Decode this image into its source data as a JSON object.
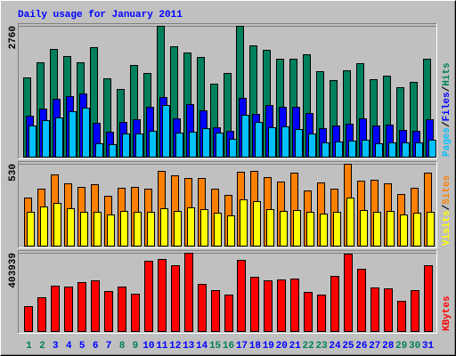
{
  "chart_data": {
    "type": "bar",
    "title": "Daily usage for January 2011",
    "categories": [
      "1",
      "2",
      "3",
      "4",
      "5",
      "6",
      "7",
      "8",
      "9",
      "10",
      "11",
      "12",
      "13",
      "14",
      "15",
      "16",
      "17",
      "18",
      "19",
      "20",
      "21",
      "22",
      "23",
      "24",
      "25",
      "26",
      "27",
      "28",
      "29",
      "30",
      "31"
    ],
    "category_label_colors": [
      "#00805c",
      "#00805c",
      "#0000ff",
      "#0000ff",
      "#0000ff",
      "#0000ff",
      "#0000ff",
      "#00805c",
      "#00805c",
      "#0000ff",
      "#0000ff",
      "#0000ff",
      "#0000ff",
      "#0000ff",
      "#00805c",
      "#00805c",
      "#0000ff",
      "#0000ff",
      "#0000ff",
      "#0000ff",
      "#0000ff",
      "#00805c",
      "#00805c",
      "#0000ff",
      "#0000ff",
      "#0000ff",
      "#0000ff",
      "#0000ff",
      "#00805c",
      "#00805c",
      "#0000ff"
    ],
    "legend_separator": "/",
    "panels": [
      {
        "ylim": [
          0,
          2760
        ],
        "yticks": [
          2760
        ],
        "series": [
          {
            "name": "Hits",
            "color": "#00805c",
            "values": [
              1673,
              1993,
              2275,
              2124,
              1993,
              2312,
              1654,
              1429,
              1936,
              1767,
              2760,
              2331,
              2200,
              2106,
              1542,
              1767,
              2760,
              2350,
              2256,
              2068,
              2068,
              2162,
              1805,
              1617,
              1824,
              1974,
              1636,
              1711,
              1466,
              1579,
              2068
            ]
          },
          {
            "name": "Files",
            "color": "#0000ff",
            "values": [
              865,
              1015,
              1222,
              1278,
              1335,
              714,
              526,
              733,
              790,
              1053,
              1260,
              808,
              1109,
              978,
              620,
              545,
              1241,
              902,
              1090,
              1053,
              1053,
              921,
              602,
              658,
              696,
              808,
              658,
              677,
              564,
              545,
              790
            ]
          },
          {
            "name": "Pages",
            "color": "#00c0ff",
            "values": [
              658,
              771,
              827,
              959,
              1034,
              282,
              263,
              489,
              489,
              545,
              1090,
              508,
              526,
              602,
              508,
              376,
              884,
              733,
              620,
              639,
              583,
              489,
              301,
              320,
              338,
              357,
              282,
              301,
              301,
              301,
              357
            ]
          }
        ]
      },
      {
        "ylim": [
          0,
          530
        ],
        "yticks": [
          530
        ],
        "series": [
          {
            "name": "Sites",
            "color": "#ff8000",
            "values": [
              311,
              369,
              461,
              403,
              380,
              397,
              323,
              374,
              380,
              369,
              484,
              455,
              438,
              438,
              369,
              328,
              478,
              484,
              444,
              415,
              472,
              357,
              409,
              369,
              530,
              421,
              426,
              403,
              334,
              374,
              472
            ]
          },
          {
            "name": "Visits",
            "color": "#ffff00",
            "values": [
              219,
              253,
              276,
              242,
              219,
              219,
              202,
              225,
              219,
              219,
              242,
              225,
              248,
              236,
              213,
              196,
              300,
              288,
              236,
              225,
              230,
              219,
              207,
              219,
              311,
              230,
              219,
              225,
              202,
              213,
              219
            ]
          }
        ]
      },
      {
        "ylim": [
          0,
          403939
        ],
        "yticks": [
          403939
        ],
        "series": [
          {
            "name": "KBytes",
            "color": "#ff0000",
            "values": [
              128522,
              174420,
              234090,
              229500,
              252450,
              261630,
              206550,
              229500,
              192780,
              362610,
              371790,
              339660,
              403939,
              243270,
              211140,
              188190,
              367200,
              279990,
              261630,
              266220,
              270810,
              201960,
              188190,
              284580,
              399330,
              321300,
              224910,
              220320,
              156060,
              211140,
              339660
            ]
          }
        ]
      }
    ]
  }
}
